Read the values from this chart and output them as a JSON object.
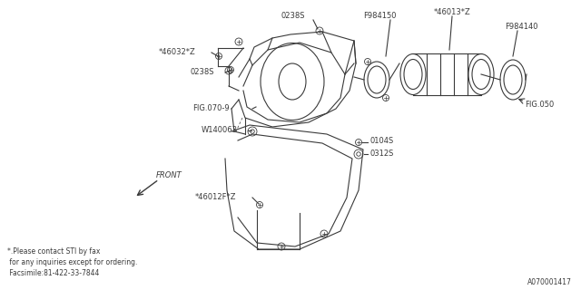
{
  "background_color": "#ffffff",
  "line_color": "#3a3a3a",
  "text_color": "#3a3a3a",
  "footnote_lines": [
    "*.Please contact STI by fax",
    " for any inquiries except for ordering.",
    " Facsimile:81-422-33-7844"
  ],
  "doc_id": "A070001417",
  "fig_width": 6.4,
  "fig_height": 3.2,
  "dpi": 100
}
